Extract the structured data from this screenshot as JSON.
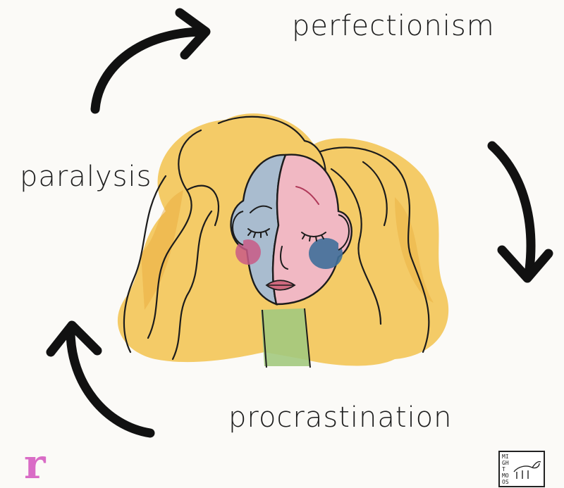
{
  "cycle": {
    "top_right": "perfectionism",
    "left": "paralysis",
    "bottom": "procrastination"
  },
  "logo_mark": "r",
  "artist_stamp": "MIGHT MOOSE",
  "colors": {
    "ink": "#1e1e1e",
    "hair": "#f2c24e",
    "face_left": "#a9bccf",
    "face_right": "#f1b8c3",
    "cheek_blue": "#3f6f9a",
    "cheek_pink": "#c95a86",
    "neck": "#a3c97e",
    "logo": "#d96cc6"
  },
  "icons": [
    "curved-arrow-icon",
    "face-illustration",
    "brand-logo",
    "artist-stamp"
  ]
}
